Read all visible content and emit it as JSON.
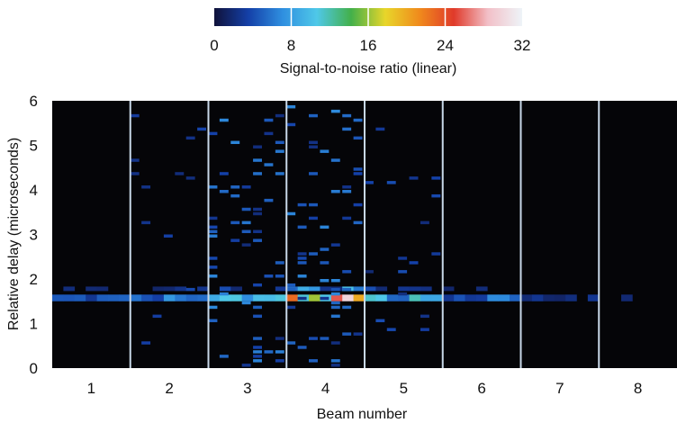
{
  "chart_data": {
    "type": "heatmap",
    "colorbar": {
      "title": "Signal-to-noise ratio (linear)",
      "ticks": [
        "0",
        "8",
        "16",
        "24",
        "32"
      ],
      "range": [
        0,
        32
      ],
      "stops": [
        "#10123a",
        "#1440a8",
        "#2f8fe0",
        "#4fc8e8",
        "#43b04a",
        "#e8d62a",
        "#f08a1c",
        "#e03a2a",
        "#f2c0c8",
        "#eef4f8"
      ]
    },
    "xlabel": "Beam number",
    "ylabel": "Relative delay (microseconds)",
    "x_ticks": [
      "1",
      "2",
      "3",
      "4",
      "5",
      "6",
      "7",
      "8"
    ],
    "y_ticks": [
      "0",
      "1",
      "2",
      "3",
      "4",
      "5",
      "6"
    ],
    "ylim": [
      0,
      6
    ],
    "beams": 8,
    "background_color": "#050508",
    "separator_color": "#c8d8e8",
    "dominant_delay_us": 1.55,
    "beam_peak_snr": [
      6,
      8,
      14,
      30,
      12,
      7,
      3,
      2
    ]
  }
}
